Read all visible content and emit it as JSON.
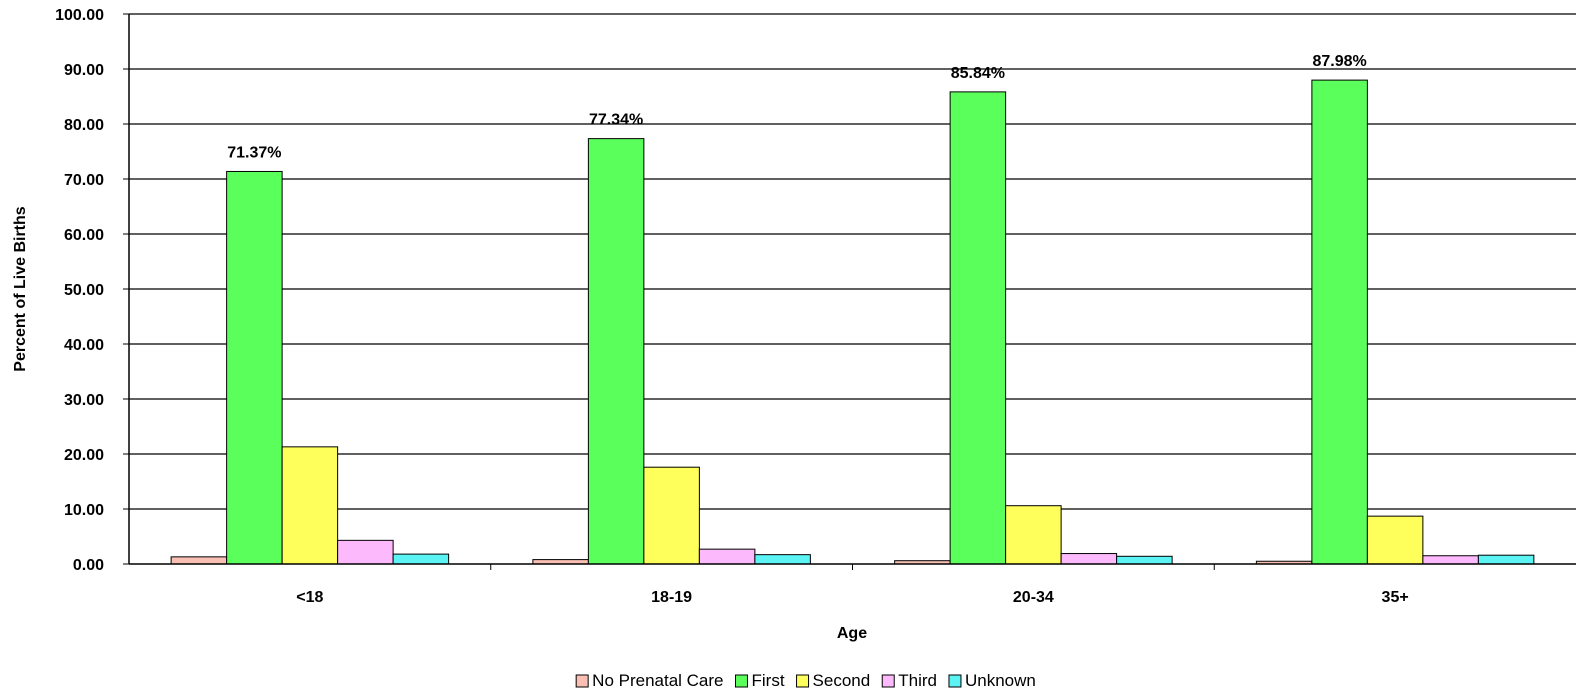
{
  "chart_data": {
    "type": "bar",
    "categories": [
      "<18",
      "18-19",
      "20-34",
      "35+"
    ],
    "series": [
      {
        "name": "No Prenatal Care",
        "color": "#F9BFB3",
        "values": [
          1.3,
          0.8,
          0.6,
          0.5
        ]
      },
      {
        "name": "First",
        "color": "#5BFF5B",
        "values": [
          71.37,
          77.34,
          85.84,
          87.98
        ]
      },
      {
        "name": "Second",
        "color": "#FFFF5B",
        "values": [
          21.3,
          17.6,
          10.6,
          8.7
        ]
      },
      {
        "name": "Third",
        "color": "#FCB9FC",
        "values": [
          4.3,
          2.7,
          1.9,
          1.5
        ]
      },
      {
        "name": "Unknown",
        "color": "#5BF3F3",
        "values": [
          1.8,
          1.7,
          1.4,
          1.6
        ]
      }
    ],
    "data_labels": {
      "series": "First",
      "texts": [
        "71.37%",
        "77.34%",
        "85.84%",
        "87.98%"
      ]
    },
    "yticks": [
      "0.00",
      "10.00",
      "20.00",
      "30.00",
      "40.00",
      "50.00",
      "60.00",
      "70.00",
      "80.00",
      "90.00",
      "100.00"
    ],
    "ylim": [
      0,
      100
    ],
    "xlabel": "Age",
    "ylabel": "Percent of Live Births",
    "grid": true,
    "legend_position": "bottom"
  }
}
